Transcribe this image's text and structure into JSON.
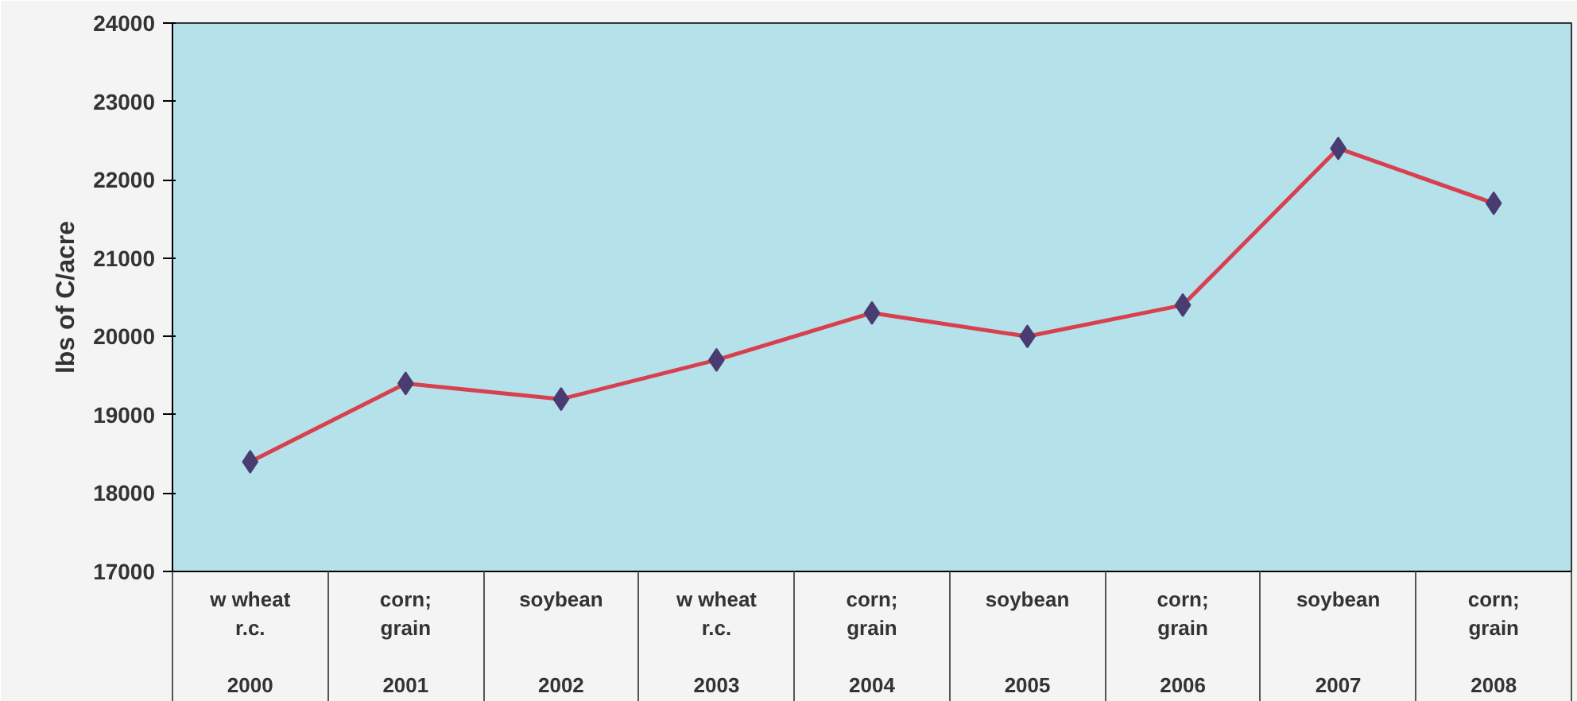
{
  "chart_data": {
    "type": "line",
    "ylabel": "lbs of C/acre",
    "categories": [
      "w wheat\nr.c.\n\n2000",
      "corn;\ngrain\n\n2001",
      "soybean\n\n\n2002",
      "w wheat\nr.c.\n\n2003",
      "corn;\ngrain\n\n2004",
      "soybean\n\n\n2005",
      "corn;\ngrain\n\n2006",
      "soybean\n\n\n2007",
      "corn;\ngrain\n\n2008"
    ],
    "series": [
      {
        "color": "#d8404f",
        "values": [
          18400,
          19400,
          19200,
          19700,
          20300,
          20000,
          20400,
          22400,
          21700
        ]
      }
    ],
    "ylim": [
      17000,
      24000
    ],
    "yticks": [
      17000,
      18000,
      19000,
      20000,
      21000,
      22000,
      23000,
      24000
    ],
    "grid": false,
    "marker": "diamond",
    "line_style": "solid"
  }
}
